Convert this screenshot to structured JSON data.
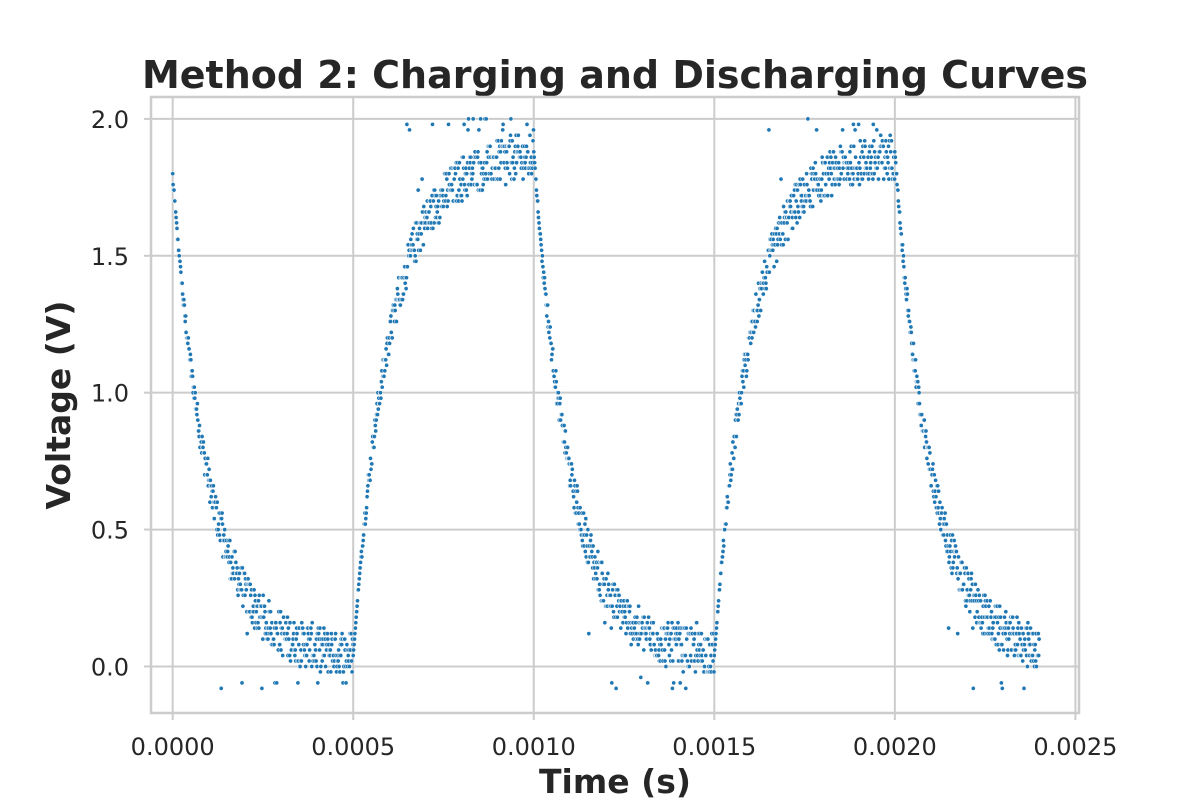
{
  "chart_data": {
    "type": "scatter",
    "title": "Method 2: Charging and Discharging Curves",
    "xlabel": "Time (s)",
    "ylabel": "Voltage (V)",
    "xlim": [
      -6e-05,
      0.00251
    ],
    "ylim": [
      -0.17,
      2.08
    ],
    "xticks": [
      0.0,
      0.0005,
      0.001,
      0.0015,
      0.002,
      0.0025
    ],
    "xtick_labels": [
      "0.0000",
      "0.0005",
      "0.0010",
      "0.0015",
      "0.0020",
      "0.0025"
    ],
    "yticks": [
      0.0,
      0.5,
      1.0,
      1.5,
      2.0
    ],
    "ytick_labels": [
      "0.0",
      "0.5",
      "1.0",
      "1.5",
      "2.0"
    ],
    "grid": true,
    "marker_color": "#1f77b4",
    "marker_edge_color": "#ffffff",
    "signal": {
      "high_level": 1.875,
      "low_level": 0.035,
      "start_voltage": 1.79,
      "tau": 0.0001,
      "band_half_width": 0.08,
      "noise_extremes": 0.13,
      "sample_step": 1.2e-06,
      "t_end": 0.0024,
      "phases": [
        {
          "type": "discharge",
          "start": 0.0,
          "end": 0.0005
        },
        {
          "type": "charge",
          "start": 0.0005,
          "end": 0.001
        },
        {
          "type": "discharge",
          "start": 0.001,
          "end": 0.0015
        },
        {
          "type": "charge",
          "start": 0.0015,
          "end": 0.002
        },
        {
          "type": "discharge",
          "start": 0.002,
          "end": 0.0024
        }
      ]
    }
  }
}
